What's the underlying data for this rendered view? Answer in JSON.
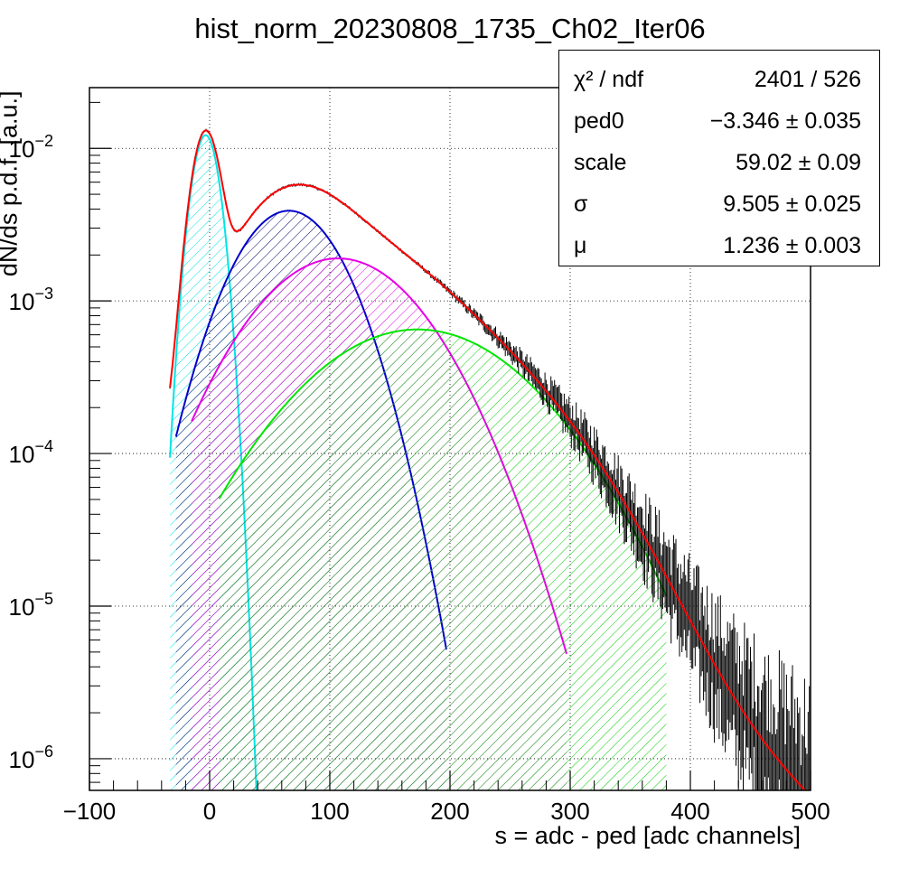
{
  "chart_data": {
    "type": "line",
    "title": "hist_norm_20230808_1735_Ch02_Iter06",
    "xlabel": "s = adc - ped [adc channels]",
    "ylabel": "dN/ds p.d.f. [a.u.]",
    "xlim": [
      -100,
      500
    ],
    "ylim": [
      6.2e-07,
      0.025
    ],
    "yscale": "log",
    "grid": true,
    "x_ticks": [
      "−100",
      "0",
      "100",
      "200",
      "300",
      "400",
      "500"
    ],
    "y_ticks": [
      {
        "base": "10",
        "exp": "−2",
        "value": 0.01
      },
      {
        "base": "10",
        "exp": "−3",
        "value": 0.001
      },
      {
        "base": "10",
        "exp": "−4",
        "value": 0.0001
      },
      {
        "base": "10",
        "exp": "−5",
        "value": 1e-05
      },
      {
        "base": "10",
        "exp": "−6",
        "value": 1e-06
      }
    ],
    "fit_params": {
      "ped0": -3.346,
      "scale": 59.02,
      "sigma": 9.505,
      "mu": 1.236
    },
    "series": [
      {
        "color": "#00e5e5",
        "kind": "component",
        "mean": -3.346,
        "sigma": 9.505,
        "amplitude": 0.0122,
        "x_range": [
          -33,
          40
        ],
        "hatch": true
      },
      {
        "color": "#0000cc",
        "kind": "component",
        "mean": 66.0,
        "sigma": 36.0,
        "amplitude": 0.0039,
        "x_range": [
          -28,
          197
        ],
        "hatch": true
      },
      {
        "color": "#e500e5",
        "kind": "component",
        "mean": 107.0,
        "sigma": 55.0,
        "amplitude": 0.0019,
        "x_range": [
          -15,
          297
        ],
        "hatch": true
      },
      {
        "color": "#00e500",
        "kind": "component",
        "mean": 173.0,
        "sigma": 73.0,
        "amplitude": 0.00065,
        "x_range": [
          8,
          380
        ],
        "hatch": true
      },
      {
        "color": "#ff0000",
        "kind": "total_fit",
        "x_range": [
          -33,
          500
        ]
      },
      {
        "color": "#000000",
        "kind": "data_histogram",
        "x_range": [
          -33,
          500
        ]
      }
    ]
  },
  "stats": [
    {
      "label": "χ² / ndf",
      "value": "2401 / 526"
    },
    {
      "label": "ped0",
      "value": "−3.346 ± 0.035"
    },
    {
      "label": "scale",
      "value": "59.02 ± 0.09"
    },
    {
      "label": "σ",
      "value": "9.505 ± 0.025"
    },
    {
      "label": "μ",
      "value": "1.236 ± 0.003"
    }
  ]
}
